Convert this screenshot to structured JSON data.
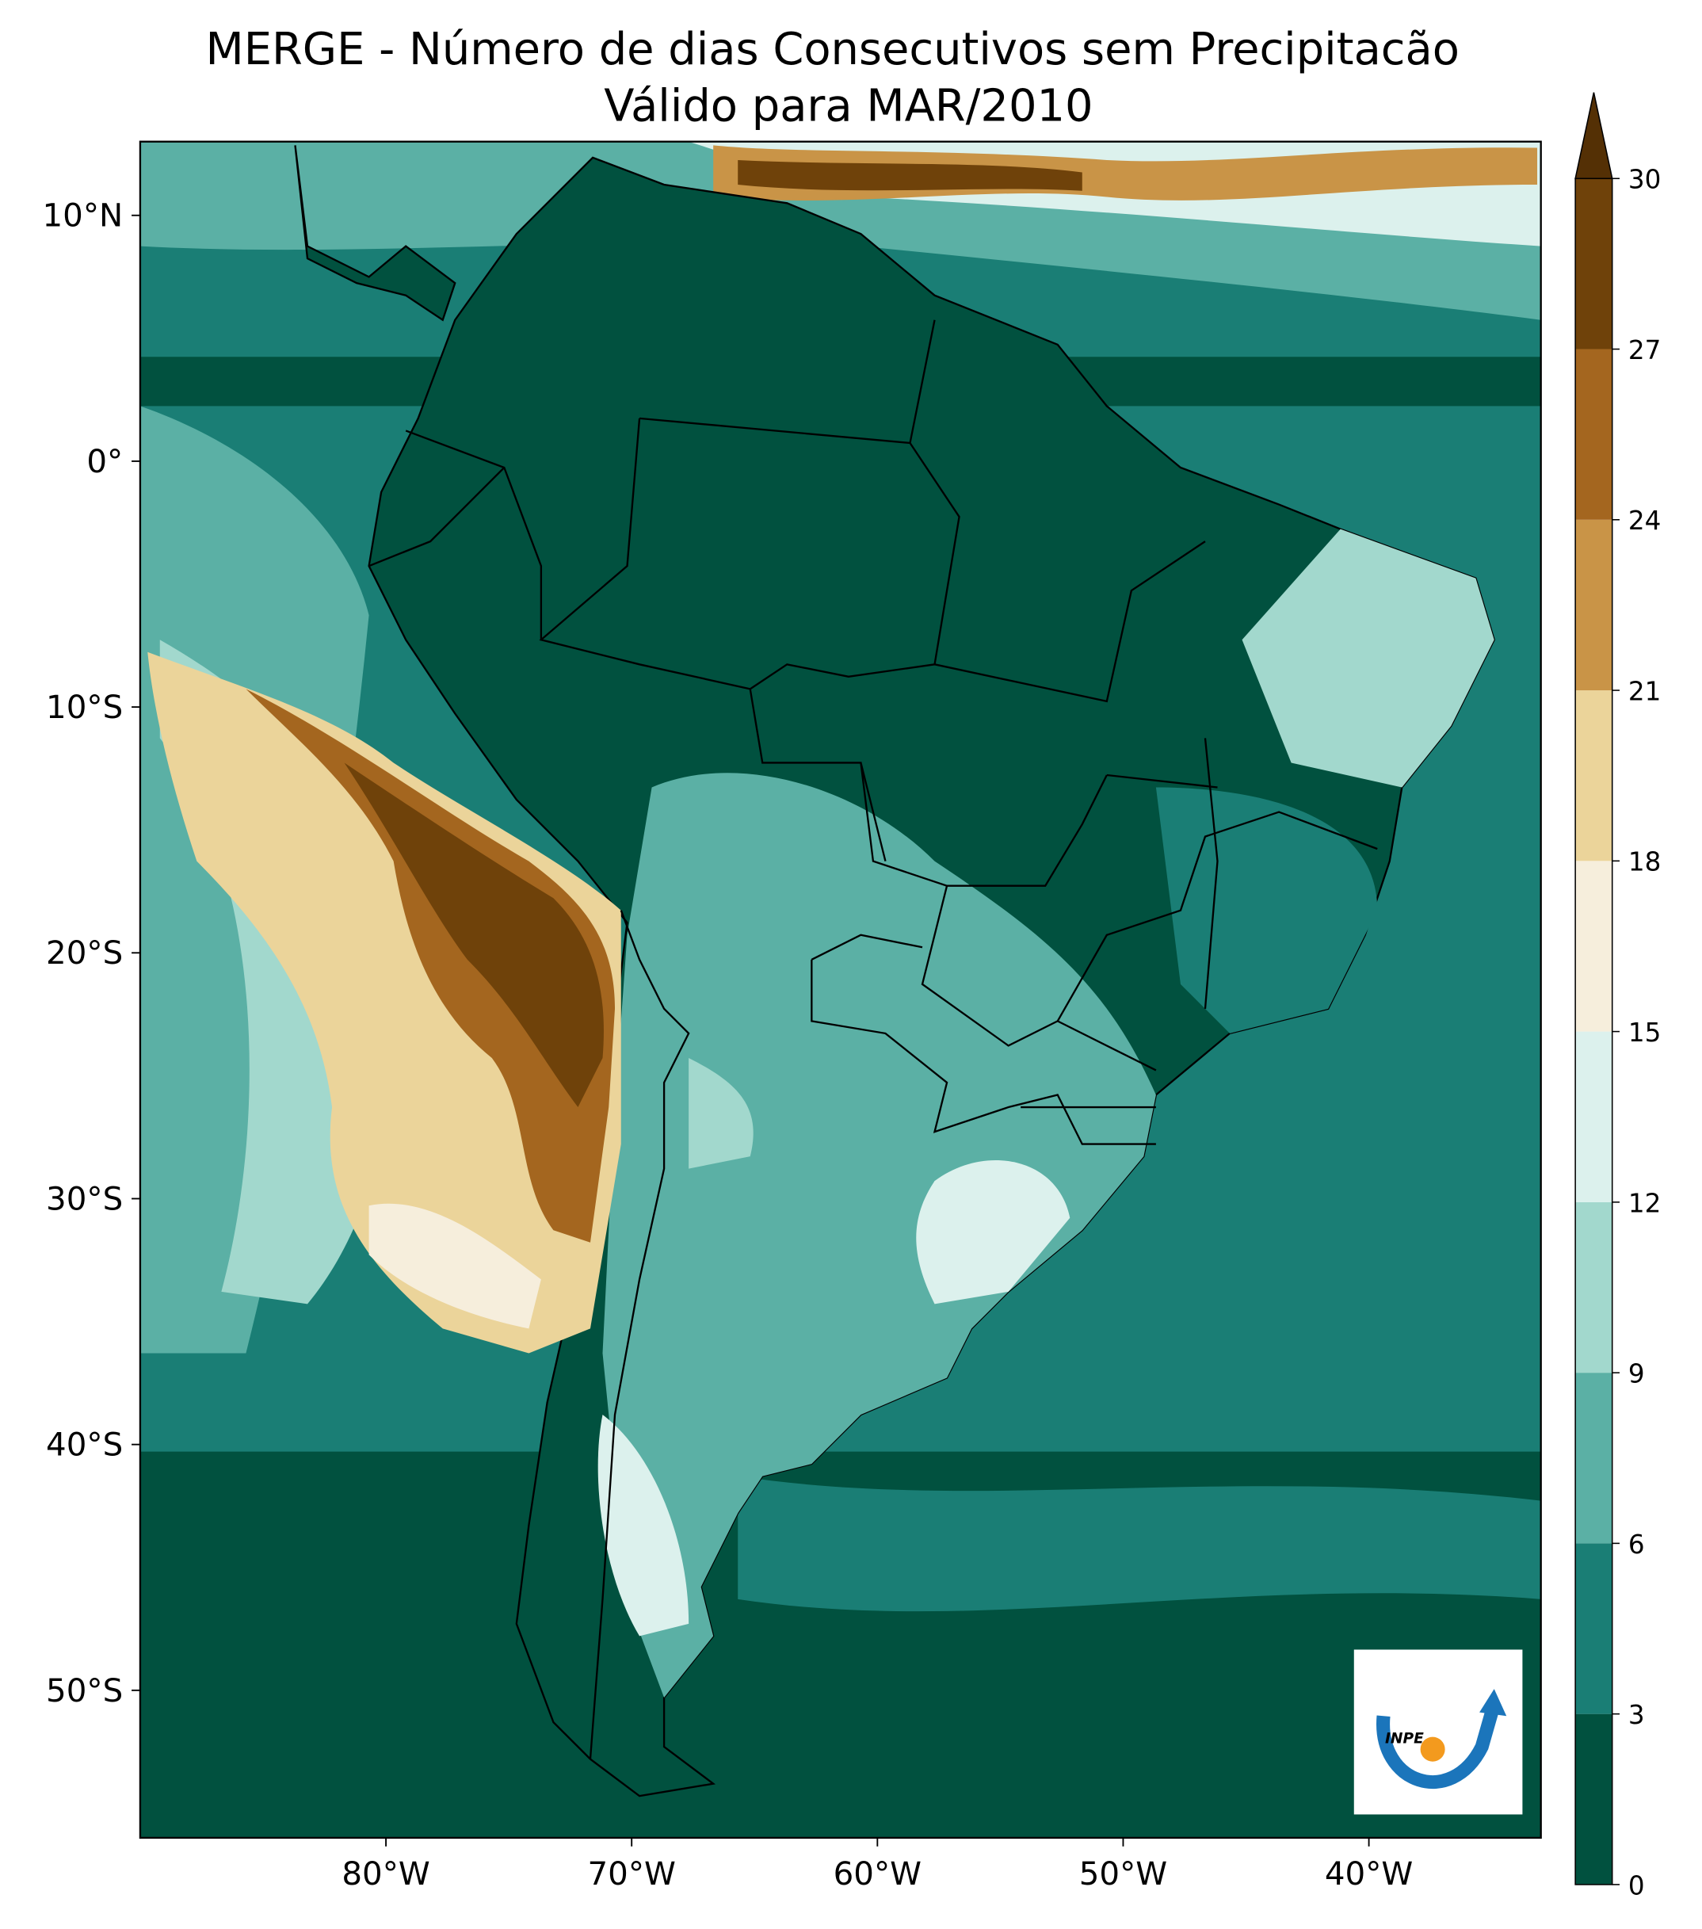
{
  "chart_data": {
    "type": "map",
    "title": "MERGE - Número de dias Consecutivos sem Precipitacão",
    "subtitle": "Válido para MAR/2010",
    "xlim": [
      -90,
      -33
    ],
    "ylim": [
      -56,
      13
    ],
    "xticks": [
      {
        "value": -80,
        "label": "80°W"
      },
      {
        "value": -70,
        "label": "70°W"
      },
      {
        "value": -60,
        "label": "60°W"
      },
      {
        "value": -50,
        "label": "50°W"
      },
      {
        "value": -40,
        "label": "40°W"
      }
    ],
    "yticks": [
      {
        "value": 10,
        "label": "10°N"
      },
      {
        "value": 0,
        "label": "0°"
      },
      {
        "value": -10,
        "label": "10°S"
      },
      {
        "value": -20,
        "label": "20°S"
      },
      {
        "value": -30,
        "label": "30°S"
      },
      {
        "value": -40,
        "label": "40°S"
      },
      {
        "value": -50,
        "label": "50°S"
      }
    ],
    "colorbar": {
      "levels": [
        0,
        3,
        6,
        9,
        12,
        15,
        18,
        21,
        24,
        27,
        30
      ],
      "colors": [
        "#01513f",
        "#1a7e75",
        "#5bb0a5",
        "#a2d8cd",
        "#dcf1ed",
        "#f6eedc",
        "#ebd49a",
        "#c99447",
        "#a4661f",
        "#6f420a"
      ],
      "extend_color": "#543005"
    },
    "logo_text": "INPE"
  }
}
